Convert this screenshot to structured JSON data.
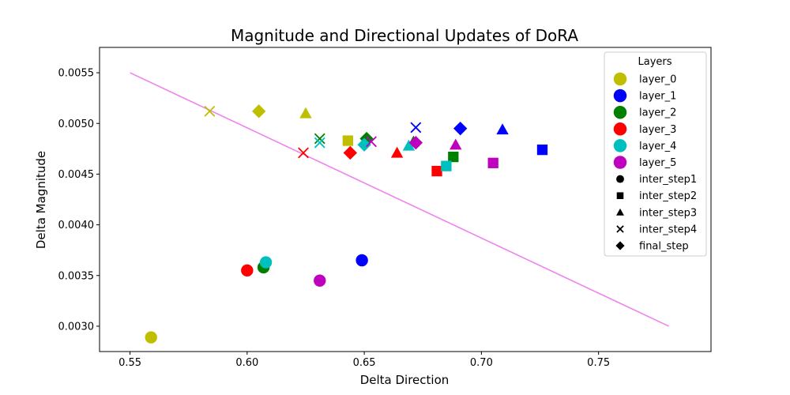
{
  "chart_data": {
    "type": "scatter",
    "title": "Magnitude and Directional Updates of DoRA",
    "xlabel": "Delta Direction",
    "ylabel": "Delta Magnitude",
    "xlim": [
      0.537,
      0.798
    ],
    "ylim": [
      0.00275,
      0.00575
    ],
    "xticks": [
      0.55,
      0.6,
      0.65,
      0.7,
      0.75
    ],
    "xtick_labels": [
      "0.55",
      "0.60",
      "0.65",
      "0.70",
      "0.75"
    ],
    "yticks": [
      0.003,
      0.0035,
      0.004,
      0.0045,
      0.005,
      0.0055
    ],
    "ytick_labels": [
      "0.0030",
      "0.0035",
      "0.0040",
      "0.0045",
      "0.0050",
      "0.0055"
    ],
    "grid": false,
    "legend": {
      "title": "Layers",
      "placement": "upper-right",
      "layers": [
        {
          "name": "layer_0",
          "color": "#bfbf00"
        },
        {
          "name": "layer_1",
          "color": "#0000ff"
        },
        {
          "name": "layer_2",
          "color": "#008000"
        },
        {
          "name": "layer_3",
          "color": "#ff0000"
        },
        {
          "name": "layer_4",
          "color": "#00bfbf"
        },
        {
          "name": "layer_5",
          "color": "#bf00bf"
        }
      ],
      "steps": [
        {
          "name": "inter_step1",
          "marker": "circle"
        },
        {
          "name": "inter_step2",
          "marker": "square"
        },
        {
          "name": "inter_step3",
          "marker": "triangle"
        },
        {
          "name": "inter_step4",
          "marker": "x"
        },
        {
          "name": "final_step",
          "marker": "diamond"
        }
      ]
    },
    "trend_line": {
      "color": "#ee82ee",
      "x": [
        0.55,
        0.78
      ],
      "y": [
        0.0055,
        0.003
      ]
    },
    "series": [
      {
        "layer": "layer_0",
        "step": "inter_step1",
        "x": 0.559,
        "y": 0.00289
      },
      {
        "layer": "layer_0",
        "step": "inter_step2",
        "x": 0.643,
        "y": 0.00483
      },
      {
        "layer": "layer_0",
        "step": "inter_step3",
        "x": 0.625,
        "y": 0.0051
      },
      {
        "layer": "layer_0",
        "step": "inter_step4",
        "x": 0.584,
        "y": 0.00512
      },
      {
        "layer": "layer_0",
        "step": "final_step",
        "x": 0.605,
        "y": 0.00512
      },
      {
        "layer": "layer_1",
        "step": "inter_step1",
        "x": 0.649,
        "y": 0.00365
      },
      {
        "layer": "layer_1",
        "step": "inter_step2",
        "x": 0.726,
        "y": 0.00474
      },
      {
        "layer": "layer_1",
        "step": "inter_step3",
        "x": 0.709,
        "y": 0.00494
      },
      {
        "layer": "layer_1",
        "step": "inter_step4",
        "x": 0.672,
        "y": 0.00496
      },
      {
        "layer": "layer_1",
        "step": "final_step",
        "x": 0.691,
        "y": 0.00495
      },
      {
        "layer": "layer_2",
        "step": "inter_step1",
        "x": 0.607,
        "y": 0.00358
      },
      {
        "layer": "layer_2",
        "step": "inter_step2",
        "x": 0.688,
        "y": 0.00467
      },
      {
        "layer": "layer_2",
        "step": "inter_step3",
        "x": 0.671,
        "y": 0.00482
      },
      {
        "layer": "layer_2",
        "step": "inter_step4",
        "x": 0.631,
        "y": 0.00485
      },
      {
        "layer": "layer_2",
        "step": "final_step",
        "x": 0.651,
        "y": 0.00485
      },
      {
        "layer": "layer_3",
        "step": "inter_step1",
        "x": 0.6,
        "y": 0.00355
      },
      {
        "layer": "layer_3",
        "step": "inter_step2",
        "x": 0.681,
        "y": 0.00453
      },
      {
        "layer": "layer_3",
        "step": "inter_step3",
        "x": 0.664,
        "y": 0.00471
      },
      {
        "layer": "layer_3",
        "step": "inter_step4",
        "x": 0.624,
        "y": 0.00471
      },
      {
        "layer": "layer_3",
        "step": "final_step",
        "x": 0.644,
        "y": 0.00471
      },
      {
        "layer": "layer_4",
        "step": "inter_step1",
        "x": 0.608,
        "y": 0.00363
      },
      {
        "layer": "layer_4",
        "step": "inter_step2",
        "x": 0.685,
        "y": 0.00458
      },
      {
        "layer": "layer_4",
        "step": "inter_step3",
        "x": 0.669,
        "y": 0.00478
      },
      {
        "layer": "layer_4",
        "step": "inter_step4",
        "x": 0.631,
        "y": 0.00481
      },
      {
        "layer": "layer_4",
        "step": "final_step",
        "x": 0.65,
        "y": 0.00479
      },
      {
        "layer": "layer_5",
        "step": "inter_step1",
        "x": 0.631,
        "y": 0.00345
      },
      {
        "layer": "layer_5",
        "step": "inter_step2",
        "x": 0.705,
        "y": 0.00461
      },
      {
        "layer": "layer_5",
        "step": "inter_step3",
        "x": 0.689,
        "y": 0.00479
      },
      {
        "layer": "layer_5",
        "step": "inter_step4",
        "x": 0.653,
        "y": 0.00482
      },
      {
        "layer": "layer_5",
        "step": "final_step",
        "x": 0.672,
        "y": 0.00481
      }
    ]
  }
}
